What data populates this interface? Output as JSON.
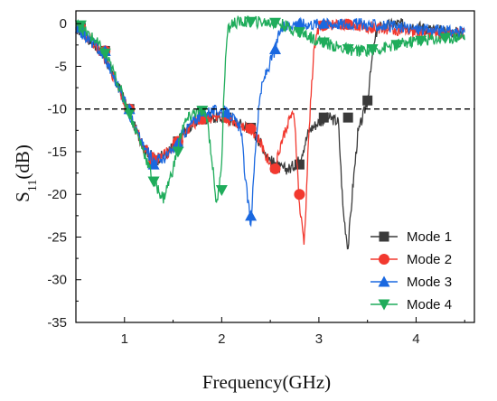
{
  "chart_data": {
    "type": "line",
    "title": "",
    "xlabel": "Frequency(GHz)",
    "ylabel_main": "S",
    "ylabel_sub": "11",
    "ylabel_unit": "(dB)",
    "xlim": [
      0.5,
      4.6
    ],
    "ylim": [
      -35,
      1.5
    ],
    "x_ticks": [
      1,
      2,
      3,
      4
    ],
    "y_ticks": [
      0,
      -5,
      -10,
      -15,
      -20,
      -25,
      -30,
      -35
    ],
    "x_tick_labels": [
      "1",
      "2",
      "3",
      "4"
    ],
    "y_tick_labels": [
      "0",
      "-5",
      "-10",
      "-15",
      "-20",
      "-25",
      "-30",
      "-35"
    ],
    "reference_line": {
      "y": -10,
      "style": "dashed"
    },
    "grid": false,
    "legend_position": "bottom-right",
    "series": [
      {
        "name": "Mode 1",
        "color": "#3a3a3a",
        "marker": "square",
        "x": [
          0.5,
          0.6,
          0.7,
          0.8,
          0.9,
          1.0,
          1.1,
          1.2,
          1.3,
          1.4,
          1.5,
          1.6,
          1.7,
          1.8,
          1.9,
          2.0,
          2.1,
          2.2,
          2.3,
          2.4,
          2.5,
          2.6,
          2.7,
          2.8,
          2.9,
          3.0,
          3.1,
          3.2,
          3.25,
          3.3,
          3.35,
          3.4,
          3.45,
          3.5,
          3.55,
          3.6,
          3.8,
          4.0,
          4.2,
          4.4,
          4.5
        ],
        "y": [
          -0.5,
          -1.5,
          -2.5,
          -4.0,
          -6.5,
          -9.0,
          -12.0,
          -14.5,
          -15.8,
          -15.5,
          -14.5,
          -13.0,
          -11.8,
          -11.0,
          -11.0,
          -11.0,
          -11.3,
          -11.8,
          -12.2,
          -14.0,
          -16.0,
          -17.0,
          -17.0,
          -16.0,
          -12.5,
          -11.5,
          -11.0,
          -11.5,
          -22.0,
          -26.3,
          -19.0,
          -13.0,
          -11.0,
          -9.0,
          -4.0,
          -0.5,
          0.0,
          -0.3,
          -0.8,
          -1.0,
          -1.2
        ],
        "markers_x": [
          0.55,
          0.8,
          1.05,
          1.3,
          1.55,
          1.8,
          2.05,
          2.3,
          2.55,
          2.8,
          3.05,
          3.3,
          3.5
        ],
        "markers_y": [
          -0.5,
          -3.2,
          -10.0,
          -16.0,
          -13.8,
          -11.2,
          -11.0,
          -12.2,
          -16.8,
          -16.5,
          -11.0,
          -11.0,
          -9.0
        ]
      },
      {
        "name": "Mode 2",
        "color": "#f2392f",
        "marker": "circle",
        "x": [
          0.5,
          0.6,
          0.7,
          0.8,
          0.9,
          1.0,
          1.1,
          1.2,
          1.3,
          1.4,
          1.5,
          1.6,
          1.7,
          1.8,
          1.9,
          2.0,
          2.1,
          2.2,
          2.3,
          2.4,
          2.5,
          2.55,
          2.6,
          2.7,
          2.75,
          2.8,
          2.85,
          2.9,
          2.95,
          3.0,
          3.2,
          3.4,
          3.6,
          3.8,
          4.0,
          4.2,
          4.5
        ],
        "y": [
          -0.5,
          -1.5,
          -2.5,
          -4.0,
          -6.5,
          -9.0,
          -12.0,
          -14.5,
          -15.8,
          -15.5,
          -14.5,
          -13.0,
          -11.8,
          -11.0,
          -11.0,
          -11.0,
          -11.3,
          -11.8,
          -12.3,
          -14.0,
          -16.5,
          -17.0,
          -14.5,
          -11.0,
          -11.0,
          -21.5,
          -25.8,
          -12.0,
          -3.0,
          -0.3,
          0.0,
          -0.2,
          -0.5,
          -0.8,
          -1.0,
          -1.1,
          -1.2
        ],
        "markers_x": [
          0.55,
          0.8,
          1.05,
          1.3,
          1.55,
          1.8,
          2.05,
          2.3,
          2.55,
          2.8,
          3.05,
          3.3
        ],
        "markers_y": [
          -0.5,
          -3.2,
          -10.0,
          -16.0,
          -13.8,
          -11.2,
          -11.0,
          -12.3,
          -17.0,
          -20.0,
          -0.2,
          -0.1
        ]
      },
      {
        "name": "Mode 3",
        "color": "#1a68e0",
        "marker": "triangle-up",
        "x": [
          0.5,
          0.6,
          0.7,
          0.8,
          0.9,
          1.0,
          1.1,
          1.2,
          1.3,
          1.4,
          1.5,
          1.6,
          1.7,
          1.8,
          1.9,
          2.0,
          2.1,
          2.2,
          2.25,
          2.3,
          2.35,
          2.4,
          2.45,
          2.5,
          2.55,
          2.6,
          2.7,
          2.9,
          3.1,
          3.4,
          3.7,
          4.0,
          4.3,
          4.5
        ],
        "y": [
          -0.5,
          -1.5,
          -2.5,
          -4.0,
          -6.5,
          -9.0,
          -12.0,
          -14.5,
          -16.0,
          -15.8,
          -14.8,
          -13.0,
          -11.5,
          -10.5,
          -10.2,
          -10.2,
          -10.8,
          -12.5,
          -19.0,
          -23.5,
          -14.0,
          -8.0,
          -6.0,
          -4.5,
          -3.0,
          -0.8,
          0.0,
          0.0,
          0.0,
          0.0,
          -0.3,
          -0.6,
          -0.9,
          -1.0
        ],
        "markers_x": [
          0.55,
          0.8,
          1.05,
          1.3,
          1.55,
          1.8,
          2.05,
          2.3,
          2.55,
          2.8,
          3.05
        ],
        "markers_y": [
          -0.5,
          -3.2,
          -10.0,
          -16.5,
          -14.0,
          -10.3,
          -10.4,
          -22.5,
          -3.0,
          0.0,
          0.0
        ]
      },
      {
        "name": "Mode 4",
        "color": "#1fac5b",
        "marker": "triangle-down",
        "x": [
          0.5,
          0.6,
          0.7,
          0.8,
          0.9,
          1.0,
          1.1,
          1.2,
          1.3,
          1.4,
          1.5,
          1.6,
          1.7,
          1.8,
          1.85,
          1.9,
          1.95,
          2.0,
          2.03,
          2.06,
          2.1,
          2.2,
          2.4,
          2.6,
          2.8,
          3.0,
          3.2,
          3.4,
          3.6,
          3.8,
          4.0,
          4.2,
          4.5
        ],
        "y": [
          0.0,
          -1.0,
          -2.0,
          -3.5,
          -6.0,
          -9.0,
          -12.0,
          -15.0,
          -18.5,
          -20.5,
          -17.0,
          -12.0,
          -10.5,
          -10.2,
          -11.0,
          -16.0,
          -21.5,
          -16.0,
          -6.0,
          -1.0,
          0.0,
          0.2,
          0.2,
          0.0,
          -1.0,
          -2.0,
          -2.8,
          -3.2,
          -3.0,
          -2.5,
          -2.0,
          -1.8,
          -1.5
        ],
        "markers_x": [
          0.55,
          0.8,
          1.05,
          1.3,
          1.55,
          1.8,
          2.0,
          2.3,
          2.55,
          2.8,
          3.05,
          3.3,
          3.55,
          3.8,
          4.05,
          4.3
        ],
        "markers_y": [
          -0.2,
          -3.5,
          -10.5,
          -18.5,
          -15.0,
          -10.2,
          -19.5,
          0.2,
          0.1,
          -1.0,
          -2.2,
          -3.0,
          -3.0,
          -2.5,
          -2.0,
          -1.7
        ]
      }
    ]
  }
}
